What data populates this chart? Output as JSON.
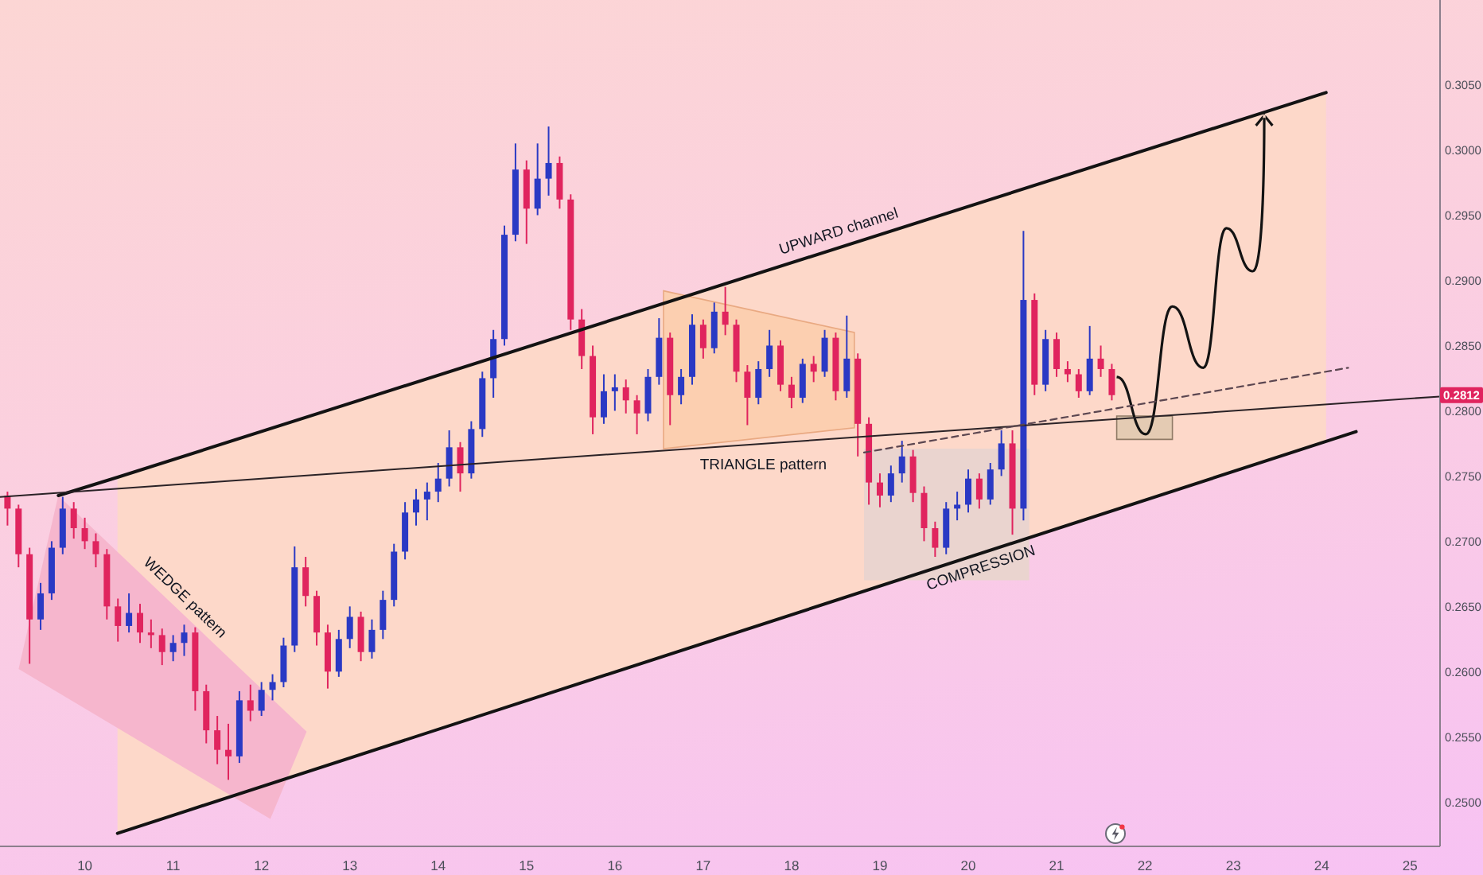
{
  "chart_data": {
    "type": "candlestick",
    "x": [
      9.125,
      9.25,
      9.375,
      9.5,
      9.625,
      9.75,
      9.875,
      10,
      10.125,
      10.25,
      10.375,
      10.5,
      10.625,
      10.75,
      10.875,
      11,
      11.125,
      11.25,
      11.375,
      11.5,
      11.625,
      11.75,
      11.875,
      12,
      12.125,
      12.25,
      12.375,
      12.5,
      12.625,
      12.75,
      12.875,
      13,
      13.125,
      13.25,
      13.375,
      13.5,
      13.625,
      13.75,
      13.875,
      14,
      14.125,
      14.25,
      14.375,
      14.5,
      14.625,
      14.75,
      14.875,
      15,
      15.125,
      15.25,
      15.375,
      15.5,
      15.625,
      15.75,
      15.875,
      16,
      16.125,
      16.25,
      16.375,
      16.5,
      16.625,
      16.75,
      16.875,
      17,
      17.125,
      17.25,
      17.375,
      17.5,
      17.625,
      17.75,
      17.875,
      18,
      18.125,
      18.25,
      18.375,
      18.5,
      18.625,
      18.75,
      18.875,
      19,
      19.125,
      19.25,
      19.375,
      19.5,
      19.625,
      19.75,
      19.875,
      20,
      20.125,
      20.25,
      20.375,
      20.5,
      20.625,
      20.75,
      20.875,
      21,
      21.125,
      21.25,
      21.375,
      21.5,
      21.625
    ],
    "ohlc": [
      [
        0.2735,
        0.2738,
        0.2712,
        0.2725
      ],
      [
        0.2725,
        0.2728,
        0.268,
        0.269
      ],
      [
        0.269,
        0.2695,
        0.2606,
        0.264
      ],
      [
        0.264,
        0.2668,
        0.2632,
        0.266
      ],
      [
        0.266,
        0.27,
        0.2655,
        0.2695
      ],
      [
        0.2695,
        0.2734,
        0.269,
        0.2725
      ],
      [
        0.2725,
        0.273,
        0.2702,
        0.271
      ],
      [
        0.271,
        0.2718,
        0.2694,
        0.27
      ],
      [
        0.27,
        0.2706,
        0.268,
        0.269
      ],
      [
        0.269,
        0.2694,
        0.264,
        0.265
      ],
      [
        0.265,
        0.2656,
        0.2623,
        0.2635
      ],
      [
        0.2635,
        0.266,
        0.263,
        0.2645
      ],
      [
        0.2645,
        0.2652,
        0.2622,
        0.263
      ],
      [
        0.263,
        0.264,
        0.2618,
        0.2628
      ],
      [
        0.2628,
        0.2633,
        0.2605,
        0.2615
      ],
      [
        0.2615,
        0.2628,
        0.2608,
        0.2622
      ],
      [
        0.2622,
        0.2636,
        0.2612,
        0.263
      ],
      [
        0.263,
        0.2634,
        0.257,
        0.2585
      ],
      [
        0.2585,
        0.259,
        0.2545,
        0.2555
      ],
      [
        0.2555,
        0.2566,
        0.2529,
        0.254
      ],
      [
        0.254,
        0.256,
        0.2517,
        0.2535
      ],
      [
        0.2535,
        0.2585,
        0.253,
        0.2578
      ],
      [
        0.2578,
        0.259,
        0.2562,
        0.257
      ],
      [
        0.257,
        0.2592,
        0.2566,
        0.2586
      ],
      [
        0.2586,
        0.2598,
        0.2578,
        0.2592
      ],
      [
        0.2592,
        0.2626,
        0.2588,
        0.262
      ],
      [
        0.262,
        0.2696,
        0.2615,
        0.268
      ],
      [
        0.268,
        0.2688,
        0.265,
        0.2658
      ],
      [
        0.2658,
        0.2662,
        0.262,
        0.263
      ],
      [
        0.263,
        0.2636,
        0.2587,
        0.26
      ],
      [
        0.26,
        0.2632,
        0.2596,
        0.2625
      ],
      [
        0.2625,
        0.265,
        0.2618,
        0.2642
      ],
      [
        0.2642,
        0.2646,
        0.2608,
        0.2615
      ],
      [
        0.2615,
        0.264,
        0.261,
        0.2632
      ],
      [
        0.2632,
        0.2662,
        0.2625,
        0.2655
      ],
      [
        0.2655,
        0.2698,
        0.265,
        0.2692
      ],
      [
        0.2692,
        0.273,
        0.2686,
        0.2722
      ],
      [
        0.2722,
        0.274,
        0.2712,
        0.2732
      ],
      [
        0.2732,
        0.2745,
        0.2716,
        0.2738
      ],
      [
        0.2738,
        0.276,
        0.273,
        0.2748
      ],
      [
        0.2748,
        0.2785,
        0.2742,
        0.2772
      ],
      [
        0.2772,
        0.2776,
        0.2738,
        0.2752
      ],
      [
        0.2752,
        0.2792,
        0.2748,
        0.2786
      ],
      [
        0.2786,
        0.283,
        0.278,
        0.2825
      ],
      [
        0.2825,
        0.2862,
        0.281,
        0.2855
      ],
      [
        0.2855,
        0.2942,
        0.285,
        0.2935
      ],
      [
        0.2935,
        0.3005,
        0.293,
        0.2985
      ],
      [
        0.2985,
        0.2992,
        0.2928,
        0.2955
      ],
      [
        0.2955,
        0.3005,
        0.295,
        0.2978
      ],
      [
        0.2978,
        0.3018,
        0.2965,
        0.299
      ],
      [
        0.299,
        0.2995,
        0.2955,
        0.2962
      ],
      [
        0.2962,
        0.2966,
        0.2862,
        0.287
      ],
      [
        0.287,
        0.2878,
        0.2832,
        0.2842
      ],
      [
        0.2842,
        0.285,
        0.2782,
        0.2795
      ],
      [
        0.2795,
        0.2828,
        0.279,
        0.2815
      ],
      [
        0.2815,
        0.2828,
        0.28,
        0.2818
      ],
      [
        0.2818,
        0.2824,
        0.2798,
        0.2808
      ],
      [
        0.2808,
        0.2812,
        0.2782,
        0.2798
      ],
      [
        0.2798,
        0.2832,
        0.2792,
        0.2826
      ],
      [
        0.2826,
        0.2871,
        0.282,
        0.2856
      ],
      [
        0.2856,
        0.286,
        0.2789,
        0.2812
      ],
      [
        0.2812,
        0.2832,
        0.2805,
        0.2826
      ],
      [
        0.2826,
        0.2874,
        0.282,
        0.2866
      ],
      [
        0.2866,
        0.287,
        0.284,
        0.2848
      ],
      [
        0.2848,
        0.2883,
        0.2844,
        0.2876
      ],
      [
        0.2876,
        0.2895,
        0.2858,
        0.2866
      ],
      [
        0.2866,
        0.287,
        0.2822,
        0.283
      ],
      [
        0.283,
        0.2835,
        0.2789,
        0.281
      ],
      [
        0.281,
        0.2838,
        0.2805,
        0.2832
      ],
      [
        0.2832,
        0.2862,
        0.2826,
        0.285
      ],
      [
        0.285,
        0.2854,
        0.2815,
        0.282
      ],
      [
        0.282,
        0.2826,
        0.2802,
        0.281
      ],
      [
        0.281,
        0.284,
        0.2806,
        0.2836
      ],
      [
        0.2836,
        0.2842,
        0.2822,
        0.283
      ],
      [
        0.283,
        0.2862,
        0.2826,
        0.2856
      ],
      [
        0.2856,
        0.286,
        0.2808,
        0.2815
      ],
      [
        0.2815,
        0.2873,
        0.281,
        0.284
      ],
      [
        0.284,
        0.2844,
        0.2765,
        0.279
      ],
      [
        0.279,
        0.2795,
        0.2728,
        0.2745
      ],
      [
        0.2745,
        0.2752,
        0.2726,
        0.2735
      ],
      [
        0.2735,
        0.2758,
        0.273,
        0.2752
      ],
      [
        0.2752,
        0.2777,
        0.2745,
        0.2765
      ],
      [
        0.2765,
        0.277,
        0.273,
        0.2737
      ],
      [
        0.2737,
        0.2742,
        0.27,
        0.271
      ],
      [
        0.271,
        0.2715,
        0.2688,
        0.2695
      ],
      [
        0.2695,
        0.273,
        0.269,
        0.2725
      ],
      [
        0.2725,
        0.2738,
        0.2716,
        0.2728
      ],
      [
        0.2728,
        0.2755,
        0.2722,
        0.2748
      ],
      [
        0.2748,
        0.2752,
        0.2725,
        0.2732
      ],
      [
        0.2732,
        0.276,
        0.2728,
        0.2755
      ],
      [
        0.2755,
        0.2785,
        0.275,
        0.2775
      ],
      [
        0.2775,
        0.2785,
        0.2705,
        0.2725
      ],
      [
        0.2725,
        0.2938,
        0.2716,
        0.2885
      ],
      [
        0.2885,
        0.289,
        0.2812,
        0.282
      ],
      [
        0.282,
        0.2862,
        0.2815,
        0.2855
      ],
      [
        0.2855,
        0.286,
        0.2826,
        0.2832
      ],
      [
        0.2832,
        0.2838,
        0.2822,
        0.2828
      ],
      [
        0.2828,
        0.2832,
        0.281,
        0.2815
      ],
      [
        0.2815,
        0.2865,
        0.2812,
        0.284
      ],
      [
        0.284,
        0.285,
        0.2826,
        0.2832
      ],
      [
        0.2832,
        0.2836,
        0.2808,
        0.2812
      ]
    ],
    "colors": [
      "#e0245e",
      "#e0245e",
      "#e0245e",
      "#2a39c4",
      "#2a39c4",
      "#2a39c4",
      "#e0245e",
      "#e0245e",
      "#e0245e",
      "#e0245e",
      "#e0245e",
      "#2a39c4",
      "#e0245e",
      "#e0245e",
      "#e0245e",
      "#2a39c4",
      "#2a39c4",
      "#e0245e",
      "#e0245e",
      "#e0245e",
      "#e0245e",
      "#2a39c4",
      "#e0245e",
      "#2a39c4",
      "#2a39c4",
      "#2a39c4",
      "#2a39c4",
      "#e0245e",
      "#e0245e",
      "#e0245e",
      "#2a39c4",
      "#2a39c4",
      "#e0245e",
      "#2a39c4",
      "#2a39c4",
      "#2a39c4",
      "#2a39c4",
      "#2a39c4",
      "#2a39c4",
      "#2a39c4",
      "#2a39c4",
      "#e0245e",
      "#2a39c4",
      "#2a39c4",
      "#2a39c4",
      "#2a39c4",
      "#2a39c4",
      "#e0245e",
      "#2a39c4",
      "#2a39c4",
      "#e0245e",
      "#e0245e",
      "#e0245e",
      "#e0245e",
      "#2a39c4",
      "#2a39c4",
      "#e0245e",
      "#e0245e",
      "#2a39c4",
      "#2a39c4",
      "#e0245e",
      "#2a39c4",
      "#2a39c4",
      "#e0245e",
      "#2a39c4",
      "#e0245e",
      "#e0245e",
      "#e0245e",
      "#2a39c4",
      "#2a39c4",
      "#e0245e",
      "#e0245e",
      "#2a39c4",
      "#e0245e",
      "#2a39c4",
      "#e0245e",
      "#2a39c4",
      "#e0245e",
      "#e0245e",
      "#e0245e",
      "#2a39c4",
      "#2a39c4",
      "#e0245e",
      "#e0245e",
      "#e0245e",
      "#2a39c4",
      "#2a39c4",
      "#2a39c4",
      "#e0245e",
      "#2a39c4",
      "#2a39c4",
      "#e0245e",
      "#2a39c4",
      "#e0245e",
      "#2a39c4",
      "#e0245e",
      "#e0245e",
      "#e0245e",
      "#2a39c4",
      "#e0245e",
      "#e0245e"
    ],
    "series": [
      {
        "type": "line",
        "color": "#131313",
        "x": [
          9.7,
          10.37,
          24.05
        ],
        "values": [
          0.2735,
          0.2749,
          0.3044
        ],
        "lower": [
          null,
          0.2476,
          0.2777
        ],
        "upper": [
          null,
          0.2749,
          0.3044
        ]
      },
      {
        "type": "line",
        "color": "#131313",
        "x": [
          10.37,
          24.39
        ],
        "values": [
          0.2476,
          0.2784
        ]
      },
      {
        "type": "line",
        "color": "#2a2226",
        "x": [
          9.04,
          25.34
        ],
        "values": [
          0.2734,
          0.2811
        ]
      },
      {
        "type": "line",
        "color": "#5b4650",
        "line_style": "dashed",
        "x": [
          18.82,
          24.3
        ],
        "values": [
          0.2768,
          0.2833
        ]
      }
    ],
    "xlim": [
      9.04,
      25.34
    ],
    "xticks": [
      10,
      11,
      12,
      13,
      14,
      15,
      16,
      17,
      18,
      19,
      20,
      21,
      22,
      23,
      24,
      25
    ],
    "ylim": [
      0.2466,
      0.3115
    ],
    "yticks": [
      {
        "value": 0.25,
        "label": "0.2500"
      },
      {
        "value": 0.255,
        "label": "0.2550"
      },
      {
        "value": 0.26,
        "label": "0.2600"
      },
      {
        "value": 0.265,
        "label": "0.2650"
      },
      {
        "value": 0.27,
        "label": "0.2700"
      },
      {
        "value": 0.275,
        "label": "0.2750"
      },
      {
        "value": 0.28,
        "label": "0.2800"
      },
      {
        "value": 0.285,
        "label": "0.2850"
      },
      {
        "value": 0.29,
        "label": "0.2900"
      },
      {
        "value": 0.295,
        "label": "0.2950"
      },
      {
        "value": 0.3,
        "label": "0.3000"
      },
      {
        "value": 0.305,
        "label": "0.3050"
      }
    ],
    "annotations": [
      "UPWARD channel",
      "TRIANGLE pattern",
      "WEDGE pattern",
      "COMPRESSION",
      {
        "text": "0.2812",
        "y": 0.2812
      }
    ]
  }
}
